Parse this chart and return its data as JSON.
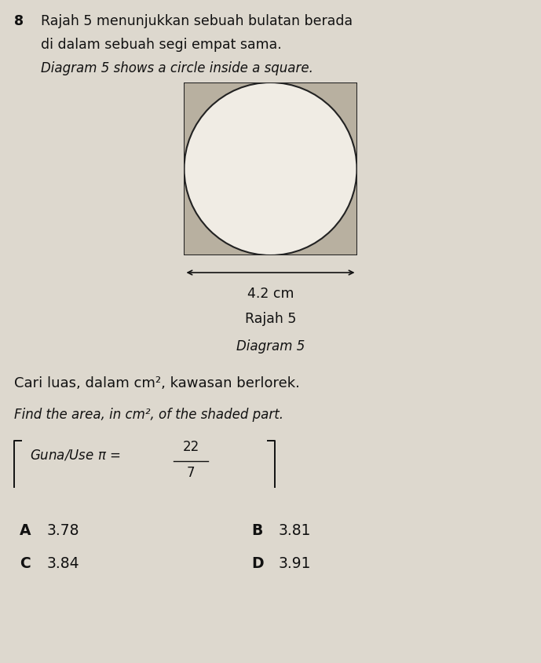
{
  "background_color": "#ddd8ce",
  "question_number": "8",
  "title_line1": "Rajah 5 menunjukkan sebuah bulatan berada",
  "title_line2": "di dalam sebuah segi empat sama.",
  "title_italic": "Diagram 5 shows a circle inside a square.",
  "diagram_label1": "Rajah 5",
  "diagram_label2": "Diagram 5",
  "dimension_label": "4.2 cm",
  "question_malay": "Cari luas, dalam cm², kawasan berlorek.",
  "question_english": "Find the area, in cm², of the shaded part.",
  "options": [
    {
      "label": "A",
      "value": "3.78"
    },
    {
      "label": "B",
      "value": "3.81"
    },
    {
      "label": "C",
      "value": "3.84"
    },
    {
      "label": "D",
      "value": "3.91"
    }
  ],
  "square_fill": "#b8b0a0",
  "circle_fill": "#f0ece4",
  "edge_color": "#222222",
  "text_color": "#111111",
  "fig_width": 6.89,
  "fig_height": 8.44,
  "dpi": 100
}
